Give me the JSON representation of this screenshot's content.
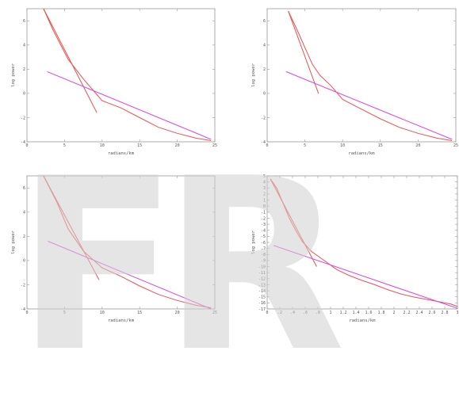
{
  "watermark": "FR",
  "colors": {
    "steep_fit": "#e8504a",
    "shallow_fit": "#e040e0",
    "spectrum": "#f05050",
    "frame": "#999999",
    "text": "#555555"
  },
  "chart_data": [
    {
      "type": "line",
      "xlabel": "radians/km",
      "ylabel": "log power",
      "xlim": [
        0,
        25
      ],
      "ylim": [
        -4,
        7
      ],
      "xticks": [
        0,
        5,
        10,
        15,
        20,
        25
      ],
      "yticks": [
        -4,
        -2,
        0,
        2,
        4,
        6
      ],
      "xtick_labels": [
        "0",
        "5",
        "10",
        "15",
        "20",
        "25"
      ],
      "ytick_labels": [
        "-4",
        "-2",
        "0",
        "2",
        "4",
        "6"
      ],
      "series": [
        {
          "role": "spectrum",
          "x": [
            2.2,
            3.5,
            5.5,
            7.5,
            10,
            12.5,
            15,
            17.5,
            20,
            22.5,
            24.5
          ],
          "y": [
            7.0,
            5.2,
            2.8,
            1.2,
            -0.6,
            -1.2,
            -2.0,
            -2.8,
            -3.3,
            -3.7,
            -3.9
          ]
        },
        {
          "role": "steep_fit",
          "x": [
            2.2,
            9.3
          ],
          "y": [
            7.0,
            -1.6
          ]
        },
        {
          "role": "shallow_fit",
          "x": [
            2.7,
            24.5
          ],
          "y": [
            1.8,
            -3.8
          ]
        }
      ]
    },
    {
      "type": "line",
      "xlabel": "radians/km",
      "ylabel": "log power",
      "xlim": [
        0,
        25
      ],
      "ylim": [
        -4,
        7
      ],
      "xticks": [
        0,
        5,
        10,
        15,
        20,
        25
      ],
      "yticks": [
        -4,
        -2,
        0,
        2,
        4,
        6
      ],
      "xtick_labels": [
        "0",
        "5",
        "10",
        "15",
        "20",
        "25"
      ],
      "ytick_labels": [
        "-4",
        "-2",
        "0",
        "2",
        "4",
        "6"
      ],
      "series": [
        {
          "role": "spectrum",
          "x": [
            2.8,
            4.0,
            5.0,
            6.0,
            7.0,
            8.5,
            10,
            12.5,
            15,
            17.5,
            20,
            22.5,
            24.5
          ],
          "y": [
            6.8,
            5.2,
            3.8,
            2.4,
            1.5,
            0.6,
            -0.5,
            -1.3,
            -2.1,
            -2.8,
            -3.3,
            -3.7,
            -3.9
          ]
        },
        {
          "role": "steep_fit",
          "x": [
            2.8,
            6.8
          ],
          "y": [
            6.8,
            0.0
          ]
        },
        {
          "role": "shallow_fit",
          "x": [
            2.5,
            24.5
          ],
          "y": [
            1.8,
            -3.8
          ]
        }
      ]
    },
    {
      "type": "line",
      "xlabel": "radians/km",
      "ylabel": "log power",
      "xlim": [
        0,
        25
      ],
      "ylim": [
        -4,
        7
      ],
      "xticks": [
        0,
        5,
        10,
        15,
        20,
        25
      ],
      "yticks": [
        -4,
        -2,
        0,
        2,
        4,
        6
      ],
      "xtick_labels": [
        "0",
        "5",
        "10",
        "15",
        "20",
        "25"
      ],
      "ytick_labels": [
        "-4",
        "-2",
        "0",
        "2",
        "4",
        "6"
      ],
      "series": [
        {
          "role": "spectrum",
          "x": [
            2.2,
            4.0,
            5.5,
            7.5,
            10,
            12.5,
            15,
            17.5,
            20,
            22.5,
            24.5
          ],
          "y": [
            7.0,
            4.8,
            2.6,
            0.8,
            -0.6,
            -1.3,
            -2.1,
            -2.8,
            -3.3,
            -3.7,
            -3.9
          ]
        },
        {
          "role": "steep_fit",
          "x": [
            2.2,
            9.6
          ],
          "y": [
            7.0,
            -1.6
          ]
        },
        {
          "role": "shallow_fit",
          "x": [
            2.8,
            24.5
          ],
          "y": [
            1.6,
            -4.0
          ]
        }
      ]
    },
    {
      "type": "line",
      "xlabel": "radians/km",
      "ylabel": "log power",
      "xlim": [
        0,
        3
      ],
      "ylim": [
        -17,
        5
      ],
      "xticks": [
        0,
        0.2,
        0.4,
        0.6,
        0.8,
        1.0,
        1.2,
        1.4,
        1.6,
        1.8,
        2.0,
        2.2,
        2.4,
        2.6,
        2.8,
        3.0
      ],
      "yticks": [
        -17,
        -16,
        -15,
        -14,
        -13,
        -12,
        -11,
        -10,
        -9,
        -8,
        -7,
        -6,
        -5,
        -4,
        -3,
        -2,
        -1,
        0,
        1,
        2,
        3,
        4,
        5
      ],
      "xtick_labels": [
        "0",
        ".2",
        ".4",
        ".6",
        ".8",
        "1",
        "1.2",
        "1.4",
        "1.6",
        "1.8",
        "2",
        "2.2",
        "2.4",
        "2.6",
        "2.8",
        "3"
      ],
      "ytick_labels": [
        "-17",
        "-16",
        "-15",
        "-14",
        "-13",
        "-12",
        "-11",
        "-10",
        "-9",
        "-8",
        "-7",
        "-6",
        "-5",
        "-4",
        "-3",
        "-2",
        "-1",
        "0",
        "1",
        "2",
        "3",
        "4",
        "5"
      ],
      "series": [
        {
          "role": "spectrum",
          "x": [
            0.05,
            0.15,
            0.25,
            0.35,
            0.45,
            0.55,
            0.7,
            0.9,
            1.1,
            1.3,
            1.5,
            1.7,
            1.9,
            2.1,
            2.3,
            2.5,
            2.7,
            2.9,
            3.0
          ],
          "y": [
            4.5,
            3.0,
            0.5,
            -2.0,
            -4.0,
            -5.8,
            -7.5,
            -9.0,
            -10.5,
            -11.5,
            -12.3,
            -13.0,
            -13.8,
            -14.5,
            -15.0,
            -15.4,
            -15.8,
            -16.2,
            -16.6
          ]
        },
        {
          "role": "steep_fit",
          "x": [
            0.05,
            0.78
          ],
          "y": [
            4.5,
            -10.0
          ]
        },
        {
          "role": "shallow_fit",
          "x": [
            0.1,
            3.0
          ],
          "y": [
            -6.5,
            -16.9
          ]
        }
      ]
    }
  ]
}
